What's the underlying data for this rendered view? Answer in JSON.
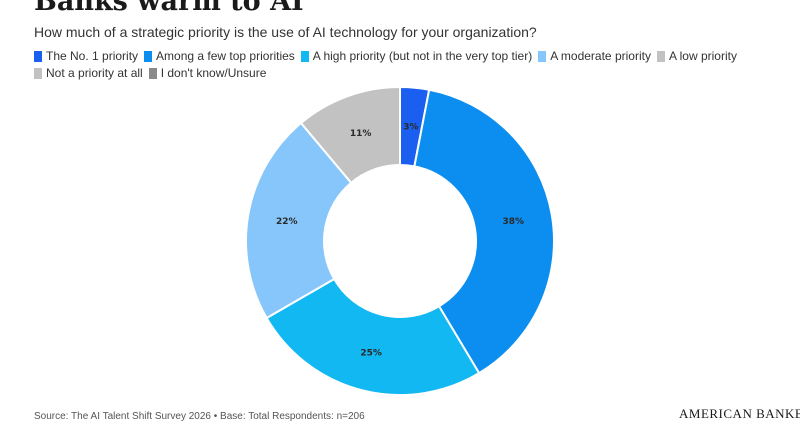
{
  "title": "Banks warm to AI",
  "subtitle": "How much of a strategic priority is the use of AI technology for your organization?",
  "source": "Source: The AI Talent Shift Survey 2026 • Base: Total Respondents: n=206",
  "logo_text": "AMERICAN BANKER",
  "chart_data": {
    "type": "pie",
    "donut": true,
    "title": "",
    "categories": [
      "The No. 1 priority",
      "Among a few top priorities",
      "A high priority (but not in the very top tier)",
      "A moderate priority",
      "A low priority",
      "Not a priority at all",
      "I don't know/Unsure"
    ],
    "values": [
      3,
      38,
      25,
      22,
      0,
      11,
      0
    ],
    "labels": [
      "3%",
      "38%",
      "25%",
      "22%",
      "",
      "11%",
      ""
    ],
    "colors": [
      "#1a5ff0",
      "#0c8ef0",
      "#12b8f2",
      "#86c6fb",
      "#c2c2c2",
      "#c2c2c2",
      "#8a8a8a"
    ],
    "legend_position": "top-left"
  }
}
